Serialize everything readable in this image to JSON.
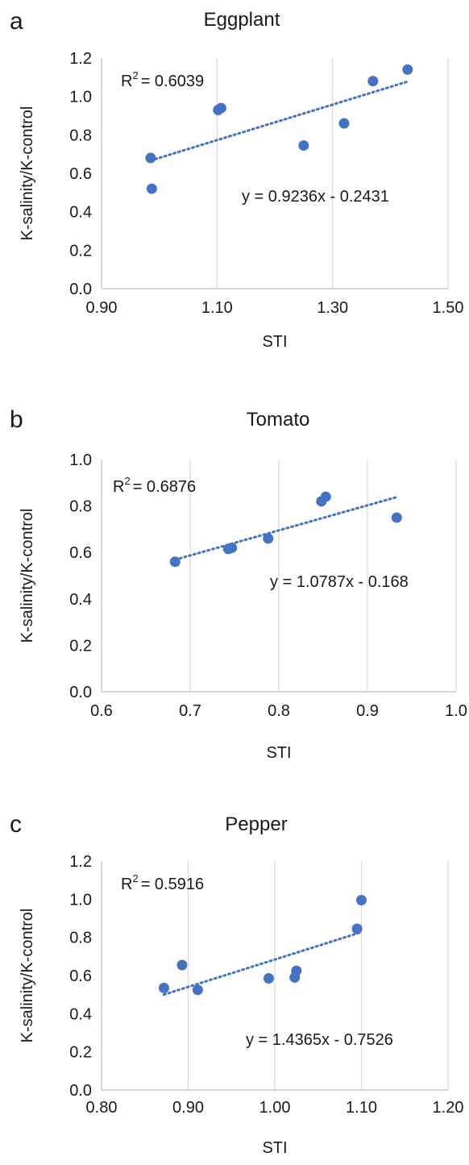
{
  "chart_data": [
    {
      "panel": "a",
      "type": "scatter",
      "title": "Eggplant",
      "xlabel": "STI",
      "ylabel": "K-salinity/K-control",
      "xlim": [
        0.9,
        1.5
      ],
      "ylim": [
        0.0,
        1.2
      ],
      "xticks": [
        "0.90",
        "1.10",
        "1.30",
        "1.50"
      ],
      "yticks": [
        "0.0",
        "0.2",
        "0.4",
        "0.6",
        "0.8",
        "1.0",
        "1.2"
      ],
      "grid": "vertical",
      "series": [
        {
          "points": [
            {
              "x": 0.985,
              "y": 0.68
            },
            {
              "x": 0.987,
              "y": 0.52
            },
            {
              "x": 1.102,
              "y": 0.93
            },
            {
              "x": 1.107,
              "y": 0.94
            },
            {
              "x": 1.25,
              "y": 0.745
            },
            {
              "x": 1.32,
              "y": 0.86
            },
            {
              "x": 1.37,
              "y": 1.08
            },
            {
              "x": 1.43,
              "y": 1.14
            }
          ]
        }
      ],
      "trendline": {
        "type": "linear",
        "slope": 0.9236,
        "intercept": -0.2431,
        "x_range": [
          0.985,
          1.43
        ]
      },
      "r2_label": "R",
      "r2_sup": "2",
      "r2_value": "= 0.6039",
      "equation": "y = 0.9236x - 0.2431"
    },
    {
      "panel": "b",
      "type": "scatter",
      "title": "Tomato",
      "xlabel": "STI",
      "ylabel": "K-salinity/K-control",
      "xlim": [
        0.6,
        1.0
      ],
      "ylim": [
        0.0,
        1.0
      ],
      "xticks": [
        "0.6",
        "0.7",
        "0.8",
        "0.9",
        "1.0"
      ],
      "yticks": [
        "0.0",
        "0.2",
        "0.4",
        "0.6",
        "0.8",
        "1.0"
      ],
      "grid": "vertical",
      "series": [
        {
          "points": [
            {
              "x": 0.683,
              "y": 0.56
            },
            {
              "x": 0.743,
              "y": 0.615
            },
            {
              "x": 0.747,
              "y": 0.62
            },
            {
              "x": 0.788,
              "y": 0.66
            },
            {
              "x": 0.848,
              "y": 0.82
            },
            {
              "x": 0.853,
              "y": 0.84
            },
            {
              "x": 0.933,
              "y": 0.75
            }
          ]
        }
      ],
      "trendline": {
        "type": "linear",
        "slope": 1.0787,
        "intercept": -0.168,
        "x_range": [
          0.683,
          0.933
        ]
      },
      "r2_label": "R",
      "r2_sup": "2",
      "r2_value": "= 0.6876",
      "equation": "y = 1.0787x - 0.168"
    },
    {
      "panel": "c",
      "type": "scatter",
      "title": "Pepper",
      "xlabel": "STI",
      "ylabel": "K-salinity/K-control",
      "xlim": [
        0.8,
        1.2
      ],
      "ylim": [
        0.0,
        1.2
      ],
      "xticks": [
        "0.80",
        "0.90",
        "1.00",
        "1.10",
        "1.20"
      ],
      "yticks": [
        "0.0",
        "0.2",
        "0.4",
        "0.6",
        "0.8",
        "1.0",
        "1.2"
      ],
      "grid": "vertical",
      "series": [
        {
          "points": [
            {
              "x": 0.872,
              "y": 0.535
            },
            {
              "x": 0.893,
              "y": 0.655
            },
            {
              "x": 0.911,
              "y": 0.525
            },
            {
              "x": 0.993,
              "y": 0.585
            },
            {
              "x": 1.023,
              "y": 0.59
            },
            {
              "x": 1.025,
              "y": 0.625
            },
            {
              "x": 1.095,
              "y": 0.845
            },
            {
              "x": 1.1,
              "y": 0.995
            }
          ]
        }
      ],
      "trendline": {
        "type": "linear",
        "slope": 1.4365,
        "intercept": -0.7526,
        "x_range": [
          0.872,
          1.1
        ]
      },
      "r2_label": "R",
      "r2_sup": "2",
      "r2_value": "= 0.5916",
      "equation": "y = 1.4365x - 0.7526"
    }
  ],
  "colors": {
    "points": "#4472c4",
    "trendline": "#4472c4",
    "grid": "#d9d9d9",
    "text": "#1a1a1a"
  }
}
